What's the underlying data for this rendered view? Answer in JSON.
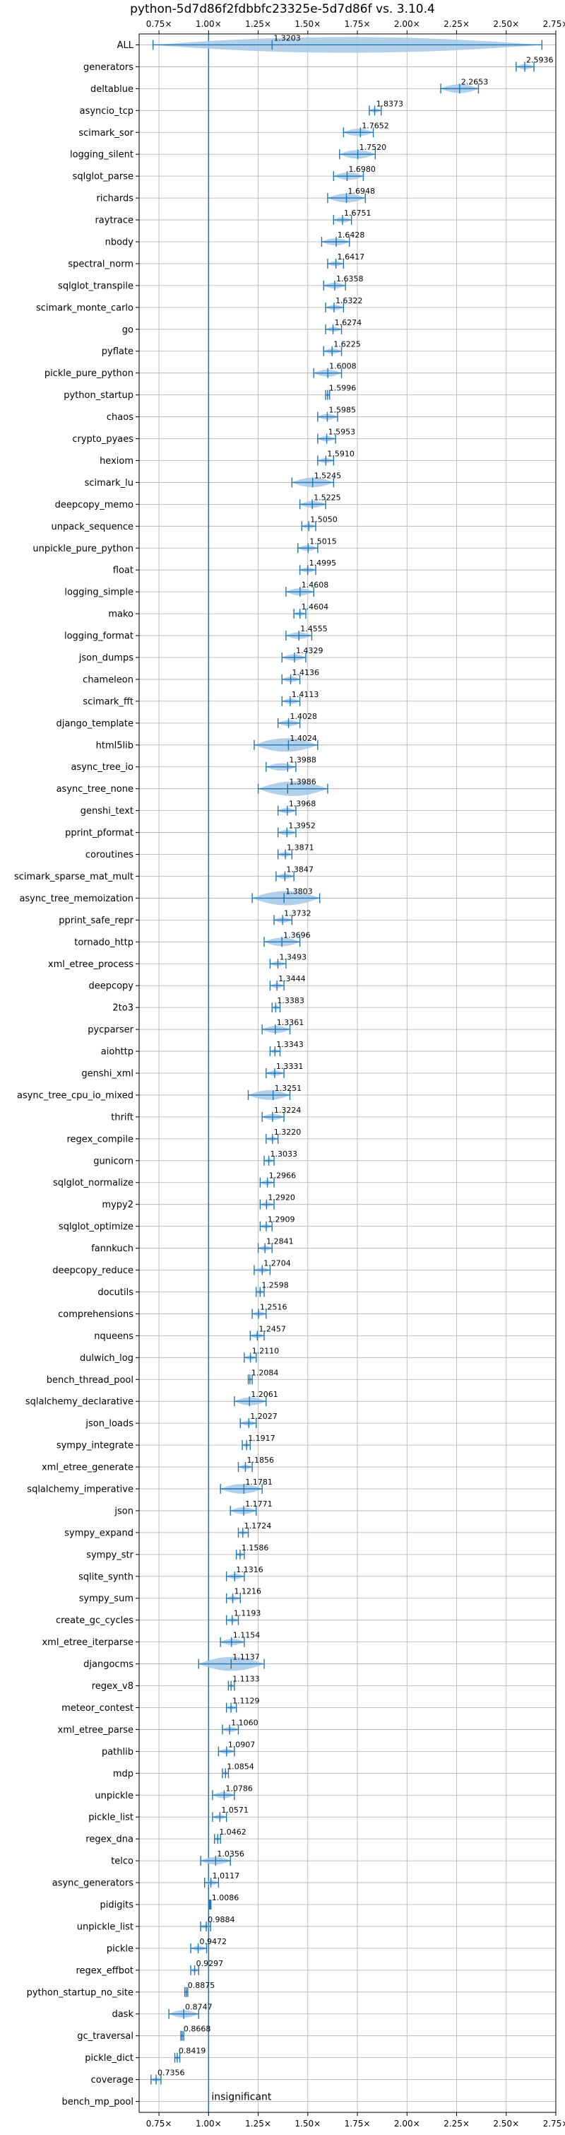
{
  "chart_data": {
    "type": "violin",
    "title": "python-5d7d86f2fdbbfc23325e-5d7d86f vs. 3.10.4",
    "xlim": [
      0.65,
      2.75
    ],
    "xticks": [
      0.75,
      1.0,
      1.25,
      1.5,
      1.75,
      2.0,
      2.25,
      2.5,
      2.75
    ],
    "xtick_labels": [
      "0.75×",
      "1.00×",
      "1.25×",
      "1.50×",
      "1.75×",
      "2.00×",
      "2.25×",
      "2.50×",
      "2.75×"
    ],
    "baseline": 1.0,
    "grid": true,
    "color": "#1f77b4",
    "fill_color": "#a6c8e8",
    "note": "insignificant",
    "note_benchmark": "bench_mp_pool",
    "benchmarks": [
      {
        "name": "ALL",
        "value": 1.3203,
        "label": "1.3203",
        "min": 0.72,
        "max": 2.68
      },
      {
        "name": "generators",
        "value": 2.5936,
        "label": "2.5936",
        "min": 2.55,
        "max": 2.64
      },
      {
        "name": "deltablue",
        "value": 2.2653,
        "label": "2.2653",
        "min": 2.17,
        "max": 2.36
      },
      {
        "name": "asyncio_tcp",
        "value": 1.8373,
        "label": "1.8373",
        "min": 1.81,
        "max": 1.87
      },
      {
        "name": "scimark_sor",
        "value": 1.7652,
        "label": "1.7652",
        "min": 1.68,
        "max": 1.83
      },
      {
        "name": "logging_silent",
        "value": 1.752,
        "label": "1.7520",
        "min": 1.66,
        "max": 1.84
      },
      {
        "name": "sqlglot_parse",
        "value": 1.698,
        "label": "1.6980",
        "min": 1.63,
        "max": 1.78
      },
      {
        "name": "richards",
        "value": 1.6948,
        "label": "1.6948",
        "min": 1.6,
        "max": 1.79
      },
      {
        "name": "raytrace",
        "value": 1.6751,
        "label": "1.6751",
        "min": 1.63,
        "max": 1.72
      },
      {
        "name": "nbody",
        "value": 1.6428,
        "label": "1.6428",
        "min": 1.57,
        "max": 1.71
      },
      {
        "name": "spectral_norm",
        "value": 1.6417,
        "label": "1.6417",
        "min": 1.6,
        "max": 1.68
      },
      {
        "name": "sqlglot_transpile",
        "value": 1.6358,
        "label": "1.6358",
        "min": 1.58,
        "max": 1.69
      },
      {
        "name": "scimark_monte_carlo",
        "value": 1.6322,
        "label": "1.6322",
        "min": 1.59,
        "max": 1.68
      },
      {
        "name": "go",
        "value": 1.6274,
        "label": "1.6274",
        "min": 1.59,
        "max": 1.67
      },
      {
        "name": "pyflate",
        "value": 1.6225,
        "label": "1.6225",
        "min": 1.58,
        "max": 1.67
      },
      {
        "name": "pickle_pure_python",
        "value": 1.6008,
        "label": "1.6008",
        "min": 1.53,
        "max": 1.67
      },
      {
        "name": "python_startup",
        "value": 1.5996,
        "label": "1.5996",
        "min": 1.59,
        "max": 1.61
      },
      {
        "name": "chaos",
        "value": 1.5985,
        "label": "1.5985",
        "min": 1.55,
        "max": 1.65
      },
      {
        "name": "crypto_pyaes",
        "value": 1.5953,
        "label": "1.5953",
        "min": 1.55,
        "max": 1.64
      },
      {
        "name": "hexiom",
        "value": 1.591,
        "label": "1.5910",
        "min": 1.55,
        "max": 1.63
      },
      {
        "name": "scimark_lu",
        "value": 1.5245,
        "label": "1.5245",
        "min": 1.42,
        "max": 1.63
      },
      {
        "name": "deepcopy_memo",
        "value": 1.5225,
        "label": "1.5225",
        "min": 1.46,
        "max": 1.59
      },
      {
        "name": "unpack_sequence",
        "value": 1.505,
        "label": "1.5050",
        "min": 1.47,
        "max": 1.54
      },
      {
        "name": "unpickle_pure_python",
        "value": 1.5015,
        "label": "1.5015",
        "min": 1.45,
        "max": 1.55
      },
      {
        "name": "float",
        "value": 1.4995,
        "label": "1.4995",
        "min": 1.46,
        "max": 1.54
      },
      {
        "name": "logging_simple",
        "value": 1.4608,
        "label": "1.4608",
        "min": 1.39,
        "max": 1.53
      },
      {
        "name": "mako",
        "value": 1.4604,
        "label": "1.4604",
        "min": 1.43,
        "max": 1.49
      },
      {
        "name": "logging_format",
        "value": 1.4555,
        "label": "1.4555",
        "min": 1.39,
        "max": 1.52
      },
      {
        "name": "json_dumps",
        "value": 1.4329,
        "label": "1.4329",
        "min": 1.37,
        "max": 1.49
      },
      {
        "name": "chameleon",
        "value": 1.4136,
        "label": "1.4136",
        "min": 1.37,
        "max": 1.46
      },
      {
        "name": "scimark_fft",
        "value": 1.4113,
        "label": "1.4113",
        "min": 1.37,
        "max": 1.46
      },
      {
        "name": "django_template",
        "value": 1.4028,
        "label": "1.4028",
        "min": 1.35,
        "max": 1.46
      },
      {
        "name": "html5lib",
        "value": 1.4024,
        "label": "1.4024",
        "min": 1.23,
        "max": 1.55
      },
      {
        "name": "async_tree_io",
        "value": 1.3988,
        "label": "1.3988",
        "min": 1.29,
        "max": 1.44
      },
      {
        "name": "async_tree_none",
        "value": 1.3986,
        "label": "1.3986",
        "min": 1.25,
        "max": 1.6
      },
      {
        "name": "genshi_text",
        "value": 1.3968,
        "label": "1.3968",
        "min": 1.35,
        "max": 1.44
      },
      {
        "name": "pprint_pformat",
        "value": 1.3952,
        "label": "1.3952",
        "min": 1.35,
        "max": 1.44
      },
      {
        "name": "coroutines",
        "value": 1.3871,
        "label": "1.3871",
        "min": 1.35,
        "max": 1.42
      },
      {
        "name": "scimark_sparse_mat_mult",
        "value": 1.3847,
        "label": "1.3847",
        "min": 1.34,
        "max": 1.43
      },
      {
        "name": "async_tree_memoization",
        "value": 1.3803,
        "label": "1.3803",
        "min": 1.22,
        "max": 1.56
      },
      {
        "name": "pprint_safe_repr",
        "value": 1.3732,
        "label": "1.3732",
        "min": 1.33,
        "max": 1.42
      },
      {
        "name": "tornado_http",
        "value": 1.3696,
        "label": "1.3696",
        "min": 1.28,
        "max": 1.46
      },
      {
        "name": "xml_etree_process",
        "value": 1.3493,
        "label": "1.3493",
        "min": 1.31,
        "max": 1.39
      },
      {
        "name": "deepcopy",
        "value": 1.3444,
        "label": "1.3444",
        "min": 1.31,
        "max": 1.38
      },
      {
        "name": "2to3",
        "value": 1.3383,
        "label": "1.3383",
        "min": 1.32,
        "max": 1.36
      },
      {
        "name": "pycparser",
        "value": 1.3361,
        "label": "1.3361",
        "min": 1.27,
        "max": 1.41
      },
      {
        "name": "aiohttp",
        "value": 1.3343,
        "label": "1.3343",
        "min": 1.31,
        "max": 1.36
      },
      {
        "name": "genshi_xml",
        "value": 1.3331,
        "label": "1.3331",
        "min": 1.29,
        "max": 1.38
      },
      {
        "name": "async_tree_cpu_io_mixed",
        "value": 1.3251,
        "label": "1.3251",
        "min": 1.2,
        "max": 1.41
      },
      {
        "name": "thrift",
        "value": 1.3224,
        "label": "1.3224",
        "min": 1.27,
        "max": 1.38
      },
      {
        "name": "regex_compile",
        "value": 1.322,
        "label": "1.3220",
        "min": 1.29,
        "max": 1.35
      },
      {
        "name": "gunicorn",
        "value": 1.3033,
        "label": "1.3033",
        "min": 1.28,
        "max": 1.33
      },
      {
        "name": "sqlglot_normalize",
        "value": 1.2966,
        "label": "1.2966",
        "min": 1.26,
        "max": 1.33
      },
      {
        "name": "mypy2",
        "value": 1.292,
        "label": "1.2920",
        "min": 1.26,
        "max": 1.33
      },
      {
        "name": "sqlglot_optimize",
        "value": 1.2909,
        "label": "1.2909",
        "min": 1.26,
        "max": 1.32
      },
      {
        "name": "fannkuch",
        "value": 1.2841,
        "label": "1.2841",
        "min": 1.25,
        "max": 1.32
      },
      {
        "name": "deepcopy_reduce",
        "value": 1.2704,
        "label": "1.2704",
        "min": 1.23,
        "max": 1.31
      },
      {
        "name": "docutils",
        "value": 1.2598,
        "label": "1.2598",
        "min": 1.24,
        "max": 1.28
      },
      {
        "name": "comprehensions",
        "value": 1.2516,
        "label": "1.2516",
        "min": 1.22,
        "max": 1.29
      },
      {
        "name": "nqueens",
        "value": 1.2457,
        "label": "1.2457",
        "min": 1.21,
        "max": 1.28
      },
      {
        "name": "dulwich_log",
        "value": 1.211,
        "label": "1.2110",
        "min": 1.18,
        "max": 1.24
      },
      {
        "name": "bench_thread_pool",
        "value": 1.2084,
        "label": "1.2084",
        "min": 1.2,
        "max": 1.22
      },
      {
        "name": "sqlalchemy_declarative",
        "value": 1.2061,
        "label": "1.2061",
        "min": 1.13,
        "max": 1.29
      },
      {
        "name": "json_loads",
        "value": 1.2027,
        "label": "1.2027",
        "min": 1.16,
        "max": 1.24
      },
      {
        "name": "sympy_integrate",
        "value": 1.1917,
        "label": "1.1917",
        "min": 1.17,
        "max": 1.21
      },
      {
        "name": "xml_etree_generate",
        "value": 1.1856,
        "label": "1.1856",
        "min": 1.15,
        "max": 1.22
      },
      {
        "name": "sqlalchemy_imperative",
        "value": 1.1781,
        "label": "1.1781",
        "min": 1.06,
        "max": 1.27
      },
      {
        "name": "json",
        "value": 1.1771,
        "label": "1.1771",
        "min": 1.11,
        "max": 1.24
      },
      {
        "name": "sympy_expand",
        "value": 1.1724,
        "label": "1.1724",
        "min": 1.15,
        "max": 1.2
      },
      {
        "name": "sympy_str",
        "value": 1.1586,
        "label": "1.1586",
        "min": 1.14,
        "max": 1.18
      },
      {
        "name": "sqlite_synth",
        "value": 1.1316,
        "label": "1.1316",
        "min": 1.09,
        "max": 1.18
      },
      {
        "name": "sympy_sum",
        "value": 1.1216,
        "label": "1.1216",
        "min": 1.09,
        "max": 1.16
      },
      {
        "name": "create_gc_cycles",
        "value": 1.1193,
        "label": "1.1193",
        "min": 1.09,
        "max": 1.15
      },
      {
        "name": "xml_etree_iterparse",
        "value": 1.1154,
        "label": "1.1154",
        "min": 1.06,
        "max": 1.18
      },
      {
        "name": "djangocms",
        "value": 1.1137,
        "label": "1.1137",
        "min": 0.95,
        "max": 1.28
      },
      {
        "name": "regex_v8",
        "value": 1.1133,
        "label": "1.1133",
        "min": 1.1,
        "max": 1.13
      },
      {
        "name": "meteor_contest",
        "value": 1.1129,
        "label": "1.1129",
        "min": 1.09,
        "max": 1.14
      },
      {
        "name": "xml_etree_parse",
        "value": 1.106,
        "label": "1.1060",
        "min": 1.07,
        "max": 1.15
      },
      {
        "name": "pathlib",
        "value": 1.0907,
        "label": "1.0907",
        "min": 1.05,
        "max": 1.13
      },
      {
        "name": "mdp",
        "value": 1.0854,
        "label": "1.0854",
        "min": 1.07,
        "max": 1.1
      },
      {
        "name": "unpickle",
        "value": 1.0786,
        "label": "1.0786",
        "min": 1.02,
        "max": 1.13
      },
      {
        "name": "pickle_list",
        "value": 1.0571,
        "label": "1.0571",
        "min": 1.02,
        "max": 1.09
      },
      {
        "name": "regex_dna",
        "value": 1.0462,
        "label": "1.0462",
        "min": 1.03,
        "max": 1.06
      },
      {
        "name": "telco",
        "value": 1.0356,
        "label": "1.0356",
        "min": 0.96,
        "max": 1.11
      },
      {
        "name": "async_generators",
        "value": 1.0117,
        "label": "1.0117",
        "min": 0.98,
        "max": 1.05
      },
      {
        "name": "pidigits",
        "value": 1.0086,
        "label": "1.0086",
        "min": 1.005,
        "max": 1.012
      },
      {
        "name": "unpickle_list",
        "value": 0.9884,
        "label": "0.9884",
        "min": 0.96,
        "max": 1.01
      },
      {
        "name": "pickle",
        "value": 0.9472,
        "label": "0.9472",
        "min": 0.91,
        "max": 0.99
      },
      {
        "name": "regex_effbot",
        "value": 0.9297,
        "label": "0.9297",
        "min": 0.91,
        "max": 0.95
      },
      {
        "name": "python_startup_no_site",
        "value": 0.8875,
        "label": "0.8875",
        "min": 0.88,
        "max": 0.895
      },
      {
        "name": "dask",
        "value": 0.8747,
        "label": "0.8747",
        "min": 0.8,
        "max": 0.95
      },
      {
        "name": "gc_traversal",
        "value": 0.8668,
        "label": "0.8668",
        "min": 0.86,
        "max": 0.875
      },
      {
        "name": "pickle_dict",
        "value": 0.8419,
        "label": "0.8419",
        "min": 0.83,
        "max": 0.855
      },
      {
        "name": "coverage",
        "value": 0.7356,
        "label": "0.7356",
        "min": 0.71,
        "max": 0.76
      },
      {
        "name": "bench_mp_pool",
        "value": null,
        "label": "",
        "min": null,
        "max": null
      }
    ]
  }
}
